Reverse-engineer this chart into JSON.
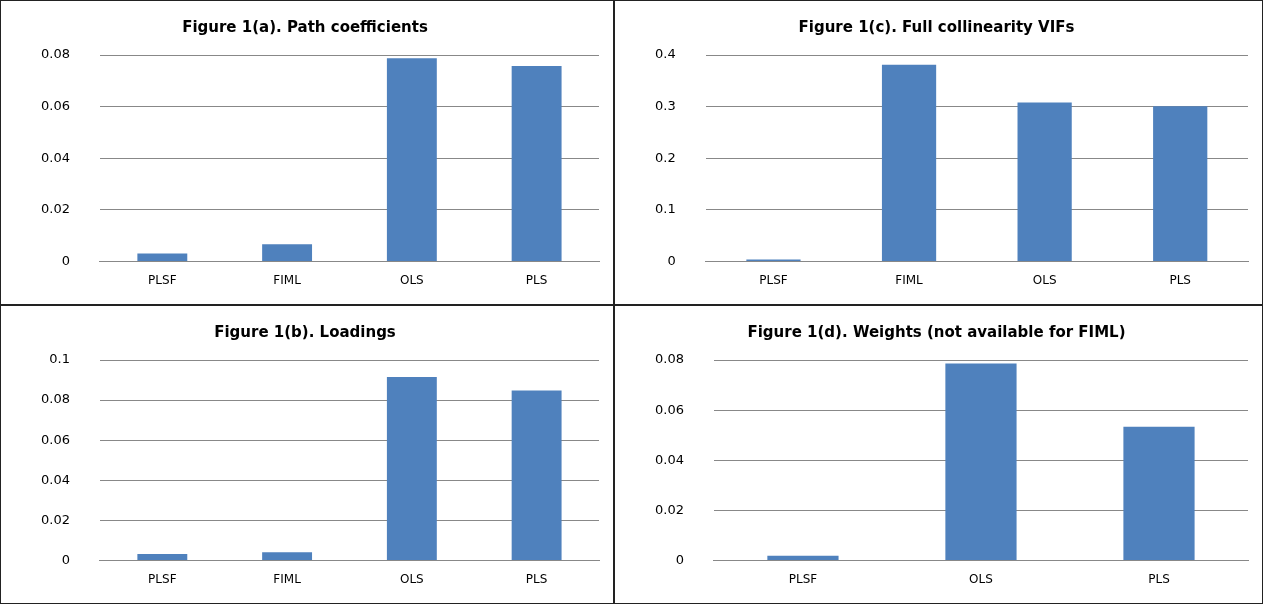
{
  "chart_data": [
    {
      "type": "bar",
      "title": "Figure 1(a). Path coefficients",
      "categories": [
        "PLSF",
        "FIML",
        "OLS",
        "PLS"
      ],
      "values": [
        0.0031,
        0.0067,
        0.0787,
        0.0757
      ],
      "color": "#4f81bd",
      "ylim": [
        0,
        0.08
      ],
      "yticks": [
        0,
        0.02,
        0.04,
        0.06,
        0.08
      ],
      "grid": "y",
      "legend": false
    },
    {
      "type": "bar",
      "title": "Figure 1(c). Full collinearity VIFs",
      "categories": [
        "PLSF",
        "FIML",
        "OLS",
        "PLS"
      ],
      "values": [
        0.004,
        0.381,
        0.308,
        0.301
      ],
      "color": "#4f81bd",
      "ylim": [
        0,
        0.4
      ],
      "yticks": [
        0,
        0.1,
        0.2,
        0.3,
        0.4
      ],
      "grid": "y",
      "legend": false
    },
    {
      "type": "bar",
      "title": "Figure 1(b). Loadings",
      "categories": [
        "PLSF",
        "FIML",
        "OLS",
        "PLS"
      ],
      "values": [
        0.0033,
        0.0042,
        0.0915,
        0.0848
      ],
      "color": "#4f81bd",
      "ylim": [
        0,
        0.1
      ],
      "yticks": [
        0,
        0.02,
        0.04,
        0.06,
        0.08,
        {
          "value": 0.1,
          "label": "0.1"
        }
      ],
      "grid": "y",
      "legend": false
    },
    {
      "type": "bar",
      "title": "Figure 1(d). Weights (not available for FIML)",
      "categories": [
        "PLSF",
        "OLS",
        "PLS"
      ],
      "values": [
        0.0019,
        0.0786,
        0.0534
      ],
      "color": "#4f81bd",
      "ylim": [
        0,
        0.08
      ],
      "yticks": [
        0,
        0.02,
        0.04,
        0.06,
        0.08
      ],
      "grid": "y",
      "legend": false
    }
  ]
}
